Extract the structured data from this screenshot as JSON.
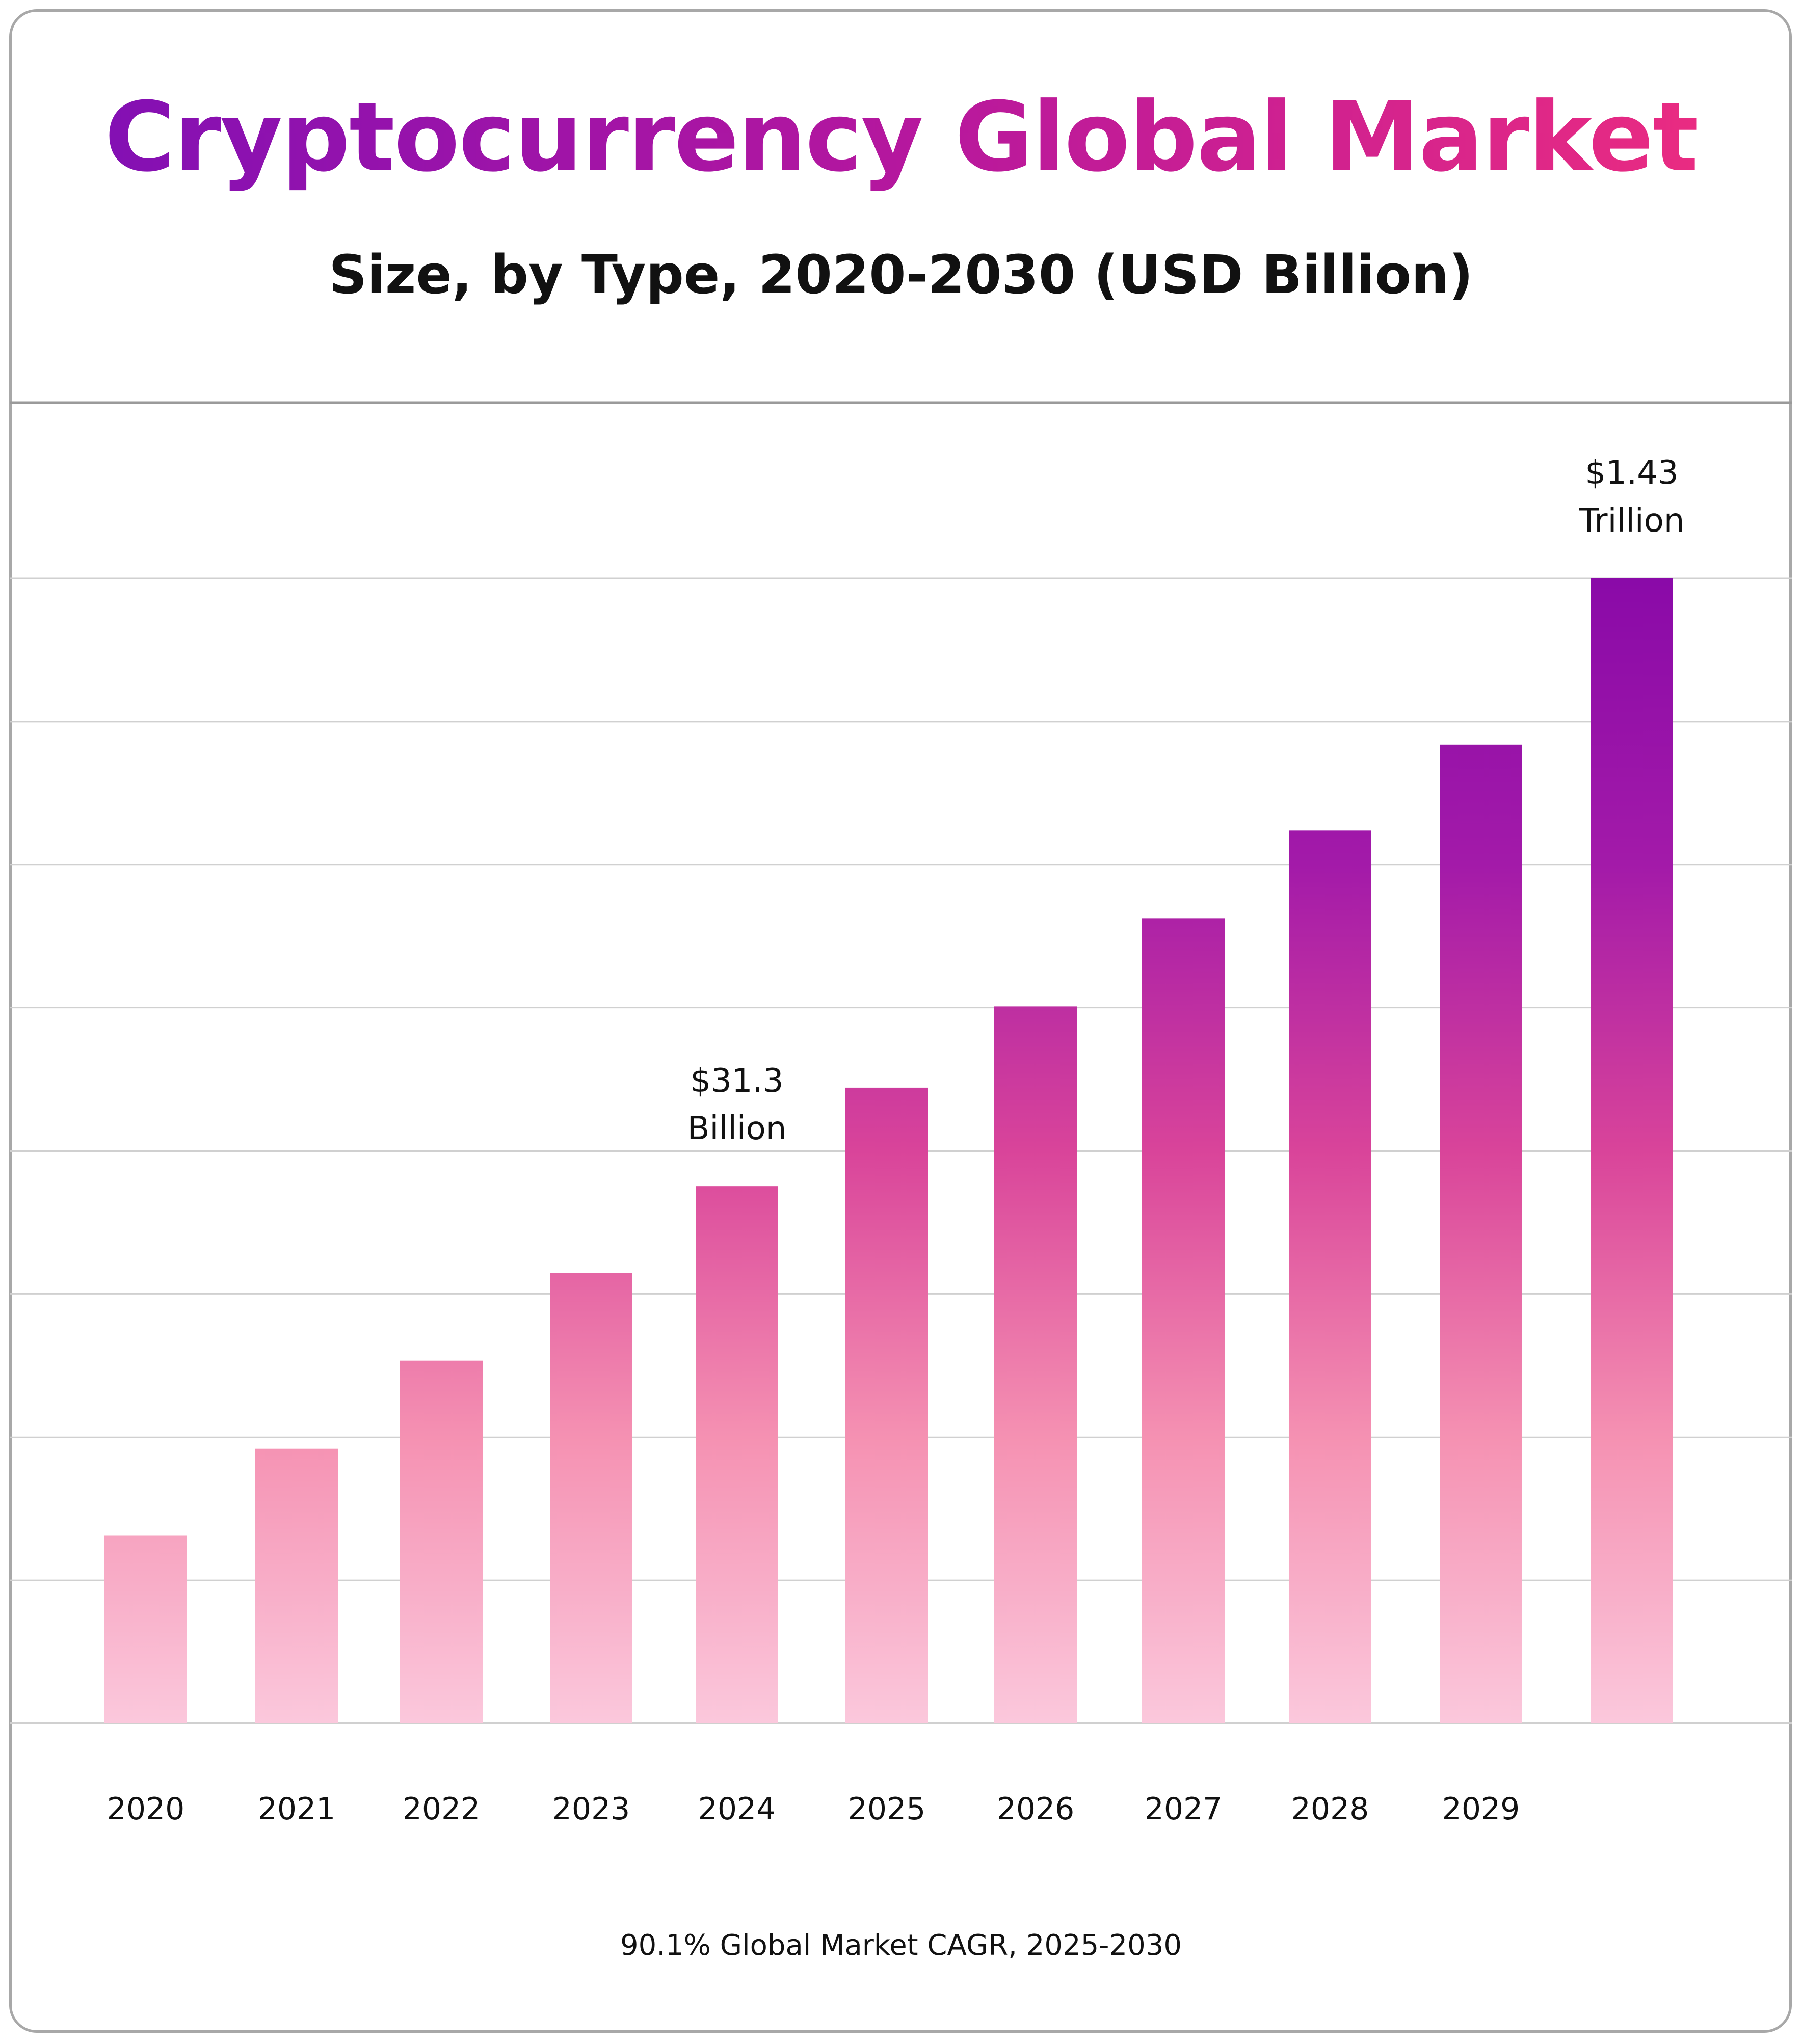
{
  "title": "Cryptocurrency Global Market",
  "subtitle": "Size, by Type, 2020-2030 (USD Billion)",
  "footer": "90.1% Global Market CAGR,  2025-2030",
  "colors": {
    "title_start": "#7d0fb6",
    "title_end": "#f02e7e",
    "bar_pink": "#f02e7e",
    "bar_purple": "#8a0aa8"
  },
  "chart_data": {
    "type": "bar",
    "categories": [
      "2020",
      "2021",
      "2022",
      "2023",
      "2024",
      "2025",
      "2026",
      "2027",
      "2028",
      "2029",
      ""
    ],
    "values": [
      16.4,
      24.0,
      31.7,
      39.3,
      46.9,
      55.5,
      62.6,
      70.3,
      78.0,
      85.5,
      100.0
    ],
    "annotations": [
      {
        "index": 4,
        "line1": "$31.3",
        "line2": "Billion"
      },
      {
        "index": 10,
        "line1": "$1.43",
        "line2": "Trillion"
      }
    ],
    "grid": true,
    "yaxis_labels": false
  }
}
